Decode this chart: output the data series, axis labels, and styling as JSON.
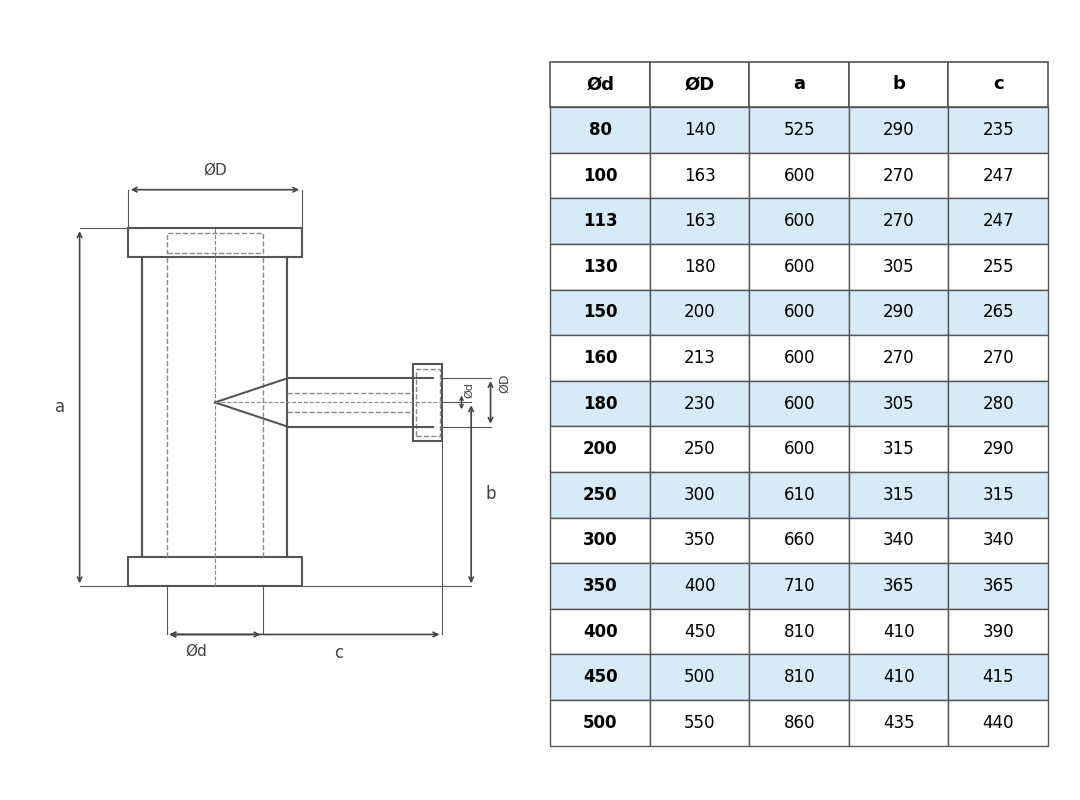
{
  "table_headers": [
    "Ød",
    "ØD",
    "a",
    "b",
    "c"
  ],
  "table_rows": [
    [
      "80",
      "140",
      "525",
      "290",
      "235"
    ],
    [
      "100",
      "163",
      "600",
      "270",
      "247"
    ],
    [
      "113",
      "163",
      "600",
      "270",
      "247"
    ],
    [
      "130",
      "180",
      "600",
      "305",
      "255"
    ],
    [
      "150",
      "200",
      "600",
      "290",
      "265"
    ],
    [
      "160",
      "213",
      "600",
      "270",
      "270"
    ],
    [
      "180",
      "230",
      "600",
      "305",
      "280"
    ],
    [
      "200",
      "250",
      "600",
      "315",
      "290"
    ],
    [
      "250",
      "300",
      "610",
      "315",
      "315"
    ],
    [
      "300",
      "350",
      "660",
      "340",
      "340"
    ],
    [
      "350",
      "400",
      "710",
      "365",
      "365"
    ],
    [
      "400",
      "450",
      "810",
      "410",
      "390"
    ],
    [
      "450",
      "500",
      "810",
      "410",
      "415"
    ],
    [
      "500",
      "550",
      "860",
      "435",
      "440"
    ]
  ],
  "row_colors_alt": [
    "#d6eaf8",
    "#ffffff"
  ],
  "header_bg": "#ffffff",
  "table_border": "#555555",
  "header_text_color": "#000000",
  "cell_text_color": "#000000",
  "bold_col0": true,
  "background_color": "#ffffff",
  "drawing_line_color": "#555555",
  "drawing_dashed_color": "#888888",
  "dim_line_color": "#444444"
}
